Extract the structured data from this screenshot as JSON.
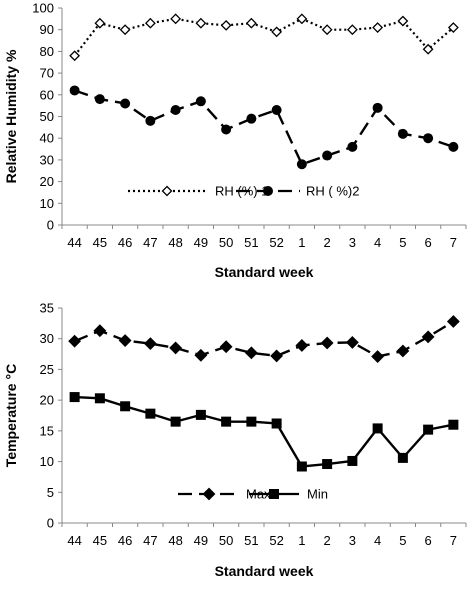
{
  "chart_data": [
    {
      "type": "line",
      "categories": [
        "44",
        "45",
        "46",
        "47",
        "48",
        "49",
        "50",
        "51",
        "52",
        "1",
        "2",
        "3",
        "4",
        "5",
        "6",
        "7"
      ],
      "xlabel": "Standard week",
      "ylabel": "Relative Humidity %",
      "ylim": [
        0,
        100
      ],
      "yticks": [
        "0",
        "10",
        "20",
        "30",
        "40",
        "50",
        "60",
        "70",
        "80",
        "90",
        "100"
      ],
      "grid": false,
      "legend_position": "bottom",
      "series": [
        {
          "name": "RH (%) 1",
          "marker": "diamond-open",
          "line": "dotted",
          "color": "#000000",
          "values": [
            78,
            93,
            90,
            93,
            95,
            93,
            92,
            93,
            89,
            95,
            90,
            90,
            91,
            94,
            81,
            91
          ]
        },
        {
          "name": "RH ( %)2",
          "marker": "circle",
          "line": "dashed",
          "color": "#000000",
          "values": [
            62,
            58,
            56,
            48,
            53,
            57,
            44,
            49,
            53,
            28,
            32,
            36,
            54,
            42,
            40,
            36
          ]
        }
      ]
    },
    {
      "type": "line",
      "categories": [
        "44",
        "45",
        "46",
        "47",
        "48",
        "49",
        "50",
        "51",
        "52",
        "1",
        "2",
        "3",
        "4",
        "5",
        "6",
        "7"
      ],
      "xlabel": "Standard week",
      "ylabel": "Temperature °C",
      "ylim": [
        0,
        35
      ],
      "yticks": [
        "0",
        "5",
        "10",
        "15",
        "20",
        "25",
        "30",
        "35"
      ],
      "grid": false,
      "legend_position": "bottom",
      "series": [
        {
          "name": "Max",
          "marker": "diamond",
          "line": "dashed",
          "color": "#000000",
          "values": [
            29.6,
            31.3,
            29.7,
            29.2,
            28.5,
            27.3,
            28.7,
            27.7,
            27.2,
            28.9,
            29.3,
            29.4,
            27.1,
            28.0,
            30.3,
            32.8
          ]
        },
        {
          "name": "Min",
          "marker": "square",
          "line": "solid",
          "color": "#000000",
          "values": [
            20.5,
            20.3,
            19.0,
            17.8,
            16.5,
            17.6,
            16.5,
            16.5,
            16.2,
            9.2,
            9.6,
            10.1,
            15.4,
            10.6,
            15.2,
            16.0
          ]
        }
      ]
    }
  ]
}
